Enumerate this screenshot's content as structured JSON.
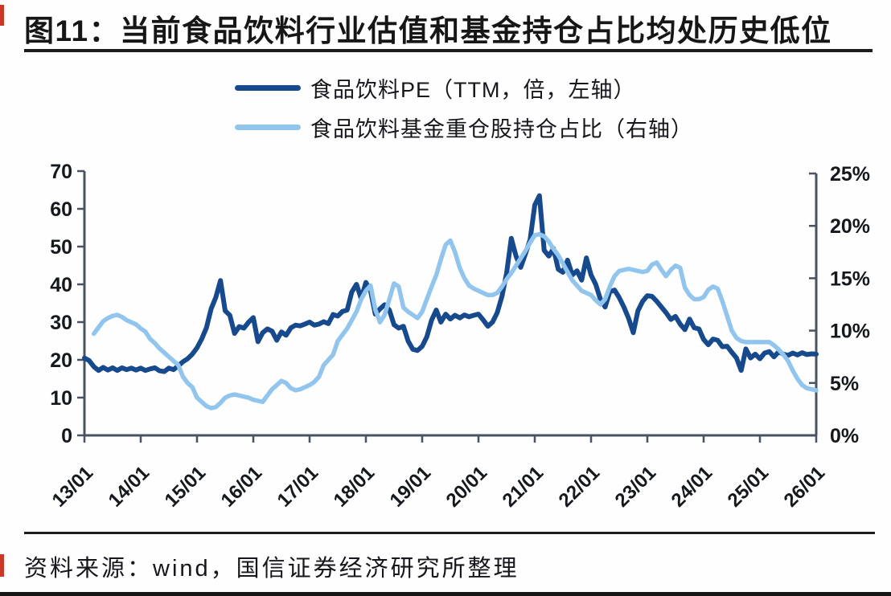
{
  "title": "图11：当前食品饮料行业估值和基金持仓占比均处历史低位",
  "source": "资料来源：wind，国信证券经济研究所整理",
  "accent_red": "#cd3728",
  "legend": [
    {
      "label": "食品饮料PE（TTM，倍，左轴）",
      "color": "#17498D"
    },
    {
      "label": "食品饮料基金重仓股持仓占比（右轴）",
      "color": "#92C5ED"
    }
  ],
  "chart_data": {
    "type": "line",
    "title": "当前食品饮料行业估值和基金持仓占比均处历史低位",
    "legend_position": "top",
    "grid": false,
    "x_tick_labels": [
      "13/01",
      "14/01",
      "15/01",
      "16/01",
      "17/01",
      "18/01",
      "19/01",
      "20/01",
      "21/01",
      "22/01",
      "23/01",
      "24/01",
      "25/01",
      "26/01"
    ],
    "x_frequency": "monthly",
    "x_start": "2013-01",
    "x_end": "2026-01",
    "left_axis": {
      "max": 70,
      "min": 0,
      "ticks": [
        0,
        10,
        20,
        30,
        40,
        50,
        60,
        70
      ]
    },
    "right_axis": {
      "max": 25,
      "min": 0,
      "tick_labels": [
        "0%",
        "5%",
        "10%",
        "15%",
        "20%",
        "25%"
      ],
      "ticks": [
        0,
        5,
        10,
        15,
        20,
        25
      ]
    },
    "series": [
      {
        "name": "食品饮料PE（TTM，倍，左轴）",
        "axis": "left",
        "color": "#17498D",
        "values": [
          20.5,
          19.8,
          18.2,
          17.2,
          18.0,
          17.3,
          17.9,
          17.2,
          17.9,
          17.4,
          17.8,
          17.3,
          17.8,
          17.2,
          17.6,
          17.9,
          17.1,
          16.9,
          17.8,
          17.4,
          18.4,
          19.5,
          20.3,
          21.5,
          23.2,
          25.5,
          28.5,
          33.5,
          36.5,
          41.0,
          33.0,
          31.8,
          27.0,
          28.8,
          28.4,
          30.0,
          31.2,
          24.8,
          27.2,
          28.2,
          27.6,
          25.2,
          27.4,
          26.5,
          28.5,
          29.2,
          29.0,
          29.5,
          30.0,
          29.2,
          29.5,
          30.1,
          29.6,
          32.0,
          31.6,
          32.8,
          33.2,
          38.0,
          40.0,
          36.2,
          40.5,
          38.3,
          32.1,
          33.5,
          34.6,
          33.2,
          29.3,
          28.4,
          28.9,
          25.0,
          22.8,
          22.5,
          23.6,
          26.1,
          30.5,
          33.2,
          30.0,
          32.1,
          30.8,
          31.8,
          31.1,
          31.9,
          31.4,
          31.8,
          32.1,
          30.6,
          28.9,
          30.0,
          32.5,
          36.8,
          43.0,
          52.2,
          47.5,
          44.5,
          48.0,
          51.8,
          61.0,
          63.5,
          49.0,
          47.5,
          49.5,
          44.0,
          43.2,
          46.4,
          42.5,
          43.6,
          41.1,
          47.0,
          42.5,
          40.0,
          36.0,
          34.0,
          38.0,
          38.5,
          36.5,
          34.0,
          31.0,
          27.2,
          33.0,
          35.5,
          37.0,
          36.8,
          35.5,
          34.0,
          32.5,
          30.7,
          31.5,
          29.5,
          28.0,
          30.8,
          28.5,
          28.2,
          25.4,
          24.0,
          25.5,
          25.2,
          23.5,
          23.6,
          22.0,
          20.5,
          17.2,
          22.9,
          20.5,
          21.5,
          20.3,
          21.8,
          22.2,
          20.8,
          22.1,
          21.5,
          21.2,
          21.8,
          21.3,
          21.9,
          21.4,
          21.6,
          21.5
        ]
      },
      {
        "name": "食品饮料基金重仓股持仓占比（右轴）",
        "axis": "right",
        "unit": "%",
        "color": "#92C5ED",
        "values": [
          null,
          null,
          9.7,
          10.3,
          10.9,
          11.2,
          11.4,
          11.5,
          11.3,
          11.0,
          10.8,
          10.6,
          10.2,
          9.9,
          9.2,
          8.8,
          8.3,
          7.9,
          7.5,
          7.1,
          6.7,
          5.6,
          5.0,
          4.6,
          3.6,
          3.2,
          2.8,
          2.6,
          2.7,
          3.1,
          3.6,
          3.8,
          3.9,
          3.8,
          3.7,
          3.6,
          3.4,
          3.3,
          3.2,
          3.8,
          4.4,
          4.8,
          5.2,
          5.0,
          4.5,
          4.3,
          4.4,
          4.6,
          4.8,
          5.1,
          5.6,
          6.7,
          7.2,
          7.7,
          9.0,
          9.6,
          10.2,
          11.0,
          11.8,
          13.0,
          13.8,
          14.3,
          12.0,
          10.8,
          11.5,
          13.0,
          14.5,
          14.2,
          12.2,
          11.8,
          11.5,
          11.2,
          11.8,
          13.0,
          14.2,
          15.3,
          16.8,
          18.2,
          18.6,
          17.5,
          16.0,
          15.0,
          14.3,
          14.0,
          13.8,
          13.6,
          13.4,
          13.4,
          13.6,
          14.2,
          14.9,
          15.5,
          16.2,
          16.9,
          17.6,
          18.4,
          19.1,
          19.2,
          19.0,
          18.5,
          17.8,
          17.2,
          16.4,
          15.6,
          14.8,
          14.3,
          13.8,
          13.6,
          13.4,
          12.9,
          12.5,
          13.0,
          14.2,
          15.2,
          15.7,
          15.8,
          15.9,
          15.8,
          15.7,
          15.6,
          15.7,
          16.3,
          16.5,
          15.8,
          15.2,
          15.8,
          16.2,
          16.0,
          14.1,
          13.4,
          13.0,
          13.0,
          13.2,
          13.9,
          14.2,
          14.0,
          12.8,
          11.4,
          10.0,
          9.3,
          9.0,
          8.9,
          8.9,
          8.9,
          8.9,
          8.9,
          8.9,
          8.6,
          8.2,
          7.7,
          7.1,
          6.2,
          5.4,
          4.8,
          4.5,
          4.4,
          4.3
        ]
      }
    ]
  }
}
